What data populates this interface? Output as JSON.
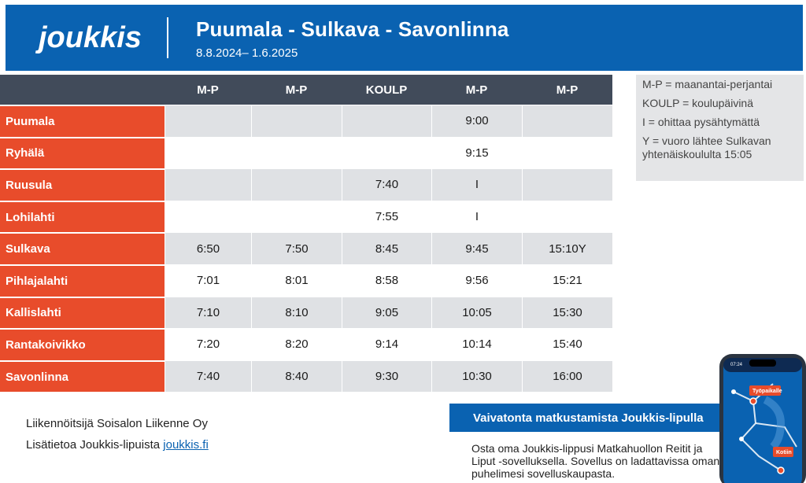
{
  "header": {
    "logo_text": "joukkis",
    "title": "Puumala - Sulkava - Savonlinna",
    "dates": "8.8.2024– 1.6.2025"
  },
  "columns": [
    "M-P",
    "M-P",
    "KOULP",
    "M-P",
    "M-P"
  ],
  "rows": [
    {
      "stop": "Puumala",
      "times": [
        "",
        "",
        "",
        "9:00",
        ""
      ]
    },
    {
      "stop": "Ryhälä",
      "times": [
        "",
        "",
        "",
        "9:15",
        ""
      ]
    },
    {
      "stop": "Ruusula",
      "times": [
        "",
        "",
        "7:40",
        "I",
        ""
      ]
    },
    {
      "stop": "Lohilahti",
      "times": [
        "",
        "",
        "7:55",
        "I",
        ""
      ]
    },
    {
      "stop": "Sulkava",
      "times": [
        "6:50",
        "7:50",
        "8:45",
        "9:45",
        "15:10Y"
      ]
    },
    {
      "stop": "Pihlajalahti",
      "times": [
        "7:01",
        "8:01",
        "8:58",
        "9:56",
        "15:21"
      ]
    },
    {
      "stop": "Kallislahti",
      "times": [
        "7:10",
        "8:10",
        "9:05",
        "10:05",
        "15:30"
      ]
    },
    {
      "stop": "Rantakoivikko",
      "times": [
        "7:20",
        "8:20",
        "9:14",
        "10:14",
        "15:40"
      ]
    },
    {
      "stop": "Savonlinna",
      "times": [
        "7:40",
        "8:40",
        "9:30",
        "10:30",
        "16:00"
      ]
    }
  ],
  "legend": [
    "M-P = maanantai-perjantai",
    "KOULP = koulupäivinä",
    "I = ohittaa pysähtymättä",
    "Y = vuoro lähtee Sulkavan yhtenäiskoululta 15:05"
  ],
  "footer": {
    "operator": "Liikennöitsijä Soisalon Liikenne Oy",
    "more_info_prefix": "Lisätietoa Joukkis-lipuista ",
    "more_info_link": "joukkis.fi"
  },
  "promo": {
    "heading": "Vaivatonta matkustamista Joukkis-lipulla",
    "text": "Osta oma Joukkis-lippusi Matkahuollon Reitit ja Liput -sovelluksella. Sovellus on ladattavissa oman puhelimesi sovelluskaupasta."
  },
  "phone": {
    "time": "07:24",
    "label_work": "Työpaikalle",
    "label_home": "Kotiin"
  },
  "colors": {
    "brand_blue": "#0a62b1",
    "stop_orange": "#e84c2b",
    "header_dark": "#414b5a",
    "shade_gray": "#dfe1e4"
  }
}
